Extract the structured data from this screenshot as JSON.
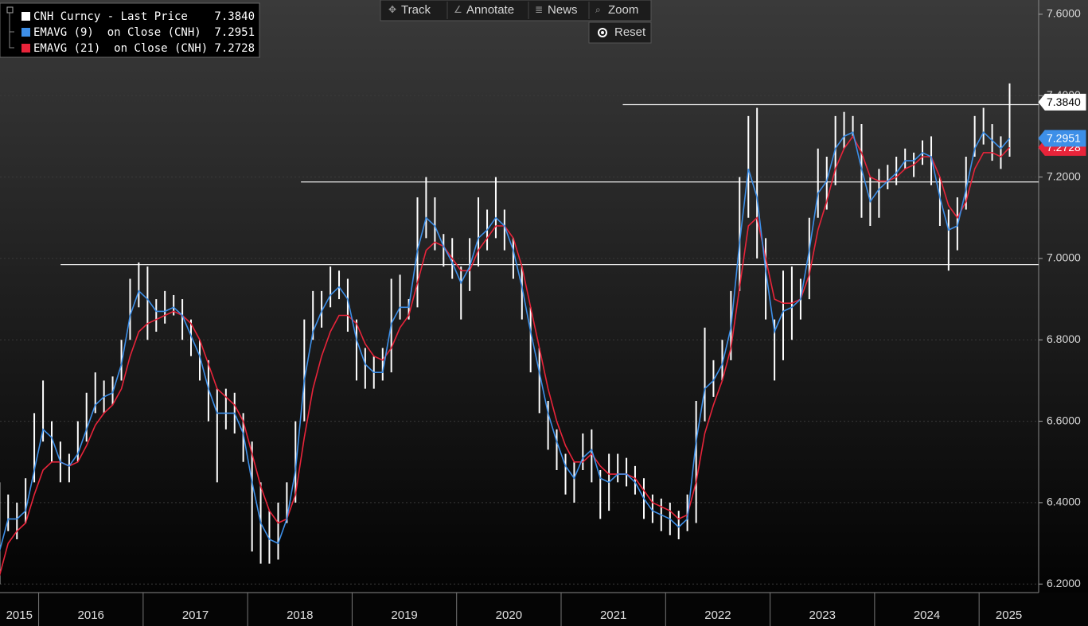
{
  "chart_data": {
    "type": "ohlc",
    "x": [
      2015.625,
      2015.708,
      2015.792,
      2015.875,
      2015.958,
      2016.042,
      2016.125,
      2016.208,
      2016.292,
      2016.375,
      2016.458,
      2016.542,
      2016.625,
      2016.708,
      2016.792,
      2016.875,
      2016.958,
      2017.042,
      2017.125,
      2017.208,
      2017.292,
      2017.375,
      2017.458,
      2017.542,
      2017.625,
      2017.708,
      2017.792,
      2017.875,
      2017.958,
      2018.042,
      2018.125,
      2018.208,
      2018.292,
      2018.375,
      2018.458,
      2018.542,
      2018.625,
      2018.708,
      2018.792,
      2018.875,
      2018.958,
      2019.042,
      2019.125,
      2019.208,
      2019.292,
      2019.375,
      2019.458,
      2019.542,
      2019.625,
      2019.708,
      2019.792,
      2019.875,
      2019.958,
      2020.042,
      2020.125,
      2020.208,
      2020.292,
      2020.375,
      2020.458,
      2020.542,
      2020.625,
      2020.708,
      2020.792,
      2020.875,
      2020.958,
      2021.042,
      2021.125,
      2021.208,
      2021.292,
      2021.375,
      2021.458,
      2021.542,
      2021.625,
      2021.708,
      2021.792,
      2021.875,
      2021.958,
      2022.042,
      2022.125,
      2022.208,
      2022.292,
      2022.375,
      2022.458,
      2022.542,
      2022.625,
      2022.708,
      2022.792,
      2022.875,
      2022.958,
      2023.042,
      2023.125,
      2023.208,
      2023.292,
      2023.375,
      2023.458,
      2023.542,
      2023.625,
      2023.708,
      2023.792,
      2023.875,
      2023.958,
      2024.042,
      2024.125,
      2024.208,
      2024.292,
      2024.375,
      2024.458,
      2024.542,
      2024.625,
      2024.708,
      2024.792,
      2024.875,
      2024.958,
      2025.042,
      2025.125,
      2025.208,
      2025.292
    ],
    "series": [
      {
        "name": "CNH Curncy - Last Price",
        "color": "#ffffff",
        "last": 7.384,
        "last_label": "7.3840",
        "high": [
          6.45,
          6.42,
          6.4,
          6.46,
          6.62,
          6.7,
          6.6,
          6.55,
          6.52,
          6.6,
          6.67,
          6.72,
          6.7,
          6.71,
          6.8,
          6.95,
          6.99,
          6.98,
          6.9,
          6.92,
          6.91,
          6.9,
          6.85,
          6.8,
          6.75,
          6.68,
          6.68,
          6.67,
          6.62,
          6.55,
          6.45,
          6.38,
          6.4,
          6.45,
          6.6,
          6.85,
          6.92,
          6.92,
          6.98,
          6.97,
          6.95,
          6.85,
          6.78,
          6.76,
          6.78,
          6.95,
          6.96,
          6.9,
          7.15,
          7.2,
          7.15,
          7.06,
          7.05,
          6.98,
          7.05,
          7.15,
          7.12,
          7.2,
          7.12,
          7.05,
          6.98,
          6.88,
          6.78,
          6.65,
          6.58,
          6.52,
          6.5,
          6.57,
          6.58,
          6.48,
          6.52,
          6.52,
          6.51,
          6.49,
          6.46,
          6.42,
          6.41,
          6.4,
          6.38,
          6.42,
          6.65,
          6.83,
          6.75,
          6.8,
          6.92,
          7.2,
          7.35,
          7.37,
          7.05,
          6.85,
          6.97,
          6.98,
          6.95,
          7.1,
          7.27,
          7.25,
          7.35,
          7.36,
          7.35,
          7.33,
          7.2,
          7.22,
          7.23,
          7.25,
          7.27,
          7.26,
          7.29,
          7.3,
          7.2,
          7.12,
          7.15,
          7.25,
          7.35,
          7.37,
          7.33,
          7.3,
          7.43
        ],
        "low": [
          6.2,
          6.33,
          6.31,
          6.35,
          6.45,
          6.55,
          6.5,
          6.45,
          6.45,
          6.5,
          6.55,
          6.62,
          6.62,
          6.64,
          6.7,
          6.8,
          6.88,
          6.8,
          6.82,
          6.84,
          6.86,
          6.8,
          6.76,
          6.7,
          6.6,
          6.45,
          6.58,
          6.57,
          6.5,
          6.28,
          6.25,
          6.25,
          6.26,
          6.35,
          6.4,
          6.6,
          6.8,
          6.83,
          6.88,
          6.9,
          6.82,
          6.7,
          6.68,
          6.68,
          6.7,
          6.72,
          6.85,
          6.85,
          6.88,
          7.05,
          7.02,
          6.98,
          6.95,
          6.85,
          6.92,
          6.98,
          7.02,
          7.05,
          7.02,
          6.95,
          6.85,
          6.72,
          6.62,
          6.53,
          6.48,
          6.42,
          6.4,
          6.48,
          6.45,
          6.36,
          6.38,
          6.45,
          6.44,
          6.42,
          6.36,
          6.35,
          6.33,
          6.32,
          6.31,
          6.33,
          6.35,
          6.6,
          6.66,
          6.7,
          6.75,
          6.92,
          7.1,
          7.0,
          6.85,
          6.7,
          6.75,
          6.8,
          6.85,
          6.9,
          7.1,
          7.12,
          7.18,
          7.27,
          7.3,
          7.1,
          7.08,
          7.1,
          7.17,
          7.18,
          7.22,
          7.2,
          7.23,
          7.18,
          7.08,
          6.97,
          7.02,
          7.12,
          7.25,
          7.28,
          7.24,
          7.22,
          7.25
        ]
      },
      {
        "name": "EMAVG (9)  on Close (CNH)",
        "color": "#3d8fe8",
        "last": 7.2951,
        "last_label": "7.2951",
        "values": [
          6.28,
          6.36,
          6.36,
          6.38,
          6.48,
          6.58,
          6.56,
          6.5,
          6.49,
          6.52,
          6.58,
          6.64,
          6.66,
          6.67,
          6.74,
          6.86,
          6.92,
          6.9,
          6.87,
          6.87,
          6.88,
          6.86,
          6.81,
          6.76,
          6.68,
          6.62,
          6.62,
          6.62,
          6.57,
          6.45,
          6.35,
          6.31,
          6.3,
          6.36,
          6.48,
          6.7,
          6.82,
          6.87,
          6.91,
          6.93,
          6.9,
          6.8,
          6.74,
          6.72,
          6.72,
          6.84,
          6.88,
          6.88,
          7.02,
          7.1,
          7.08,
          7.03,
          6.99,
          6.94,
          6.98,
          7.05,
          7.07,
          7.1,
          7.08,
          7.02,
          6.93,
          6.82,
          6.72,
          6.62,
          6.55,
          6.49,
          6.46,
          6.51,
          6.53,
          6.46,
          6.45,
          6.47,
          6.47,
          6.45,
          6.41,
          6.38,
          6.37,
          6.36,
          6.34,
          6.36,
          6.55,
          6.68,
          6.7,
          6.74,
          6.83,
          7.04,
          7.22,
          7.15,
          6.97,
          6.82,
          6.87,
          6.88,
          6.9,
          7.02,
          7.16,
          7.19,
          7.27,
          7.3,
          7.31,
          7.22,
          7.14,
          7.17,
          7.19,
          7.21,
          7.24,
          7.24,
          7.26,
          7.25,
          7.15,
          7.07,
          7.08,
          7.17,
          7.27,
          7.31,
          7.29,
          7.27,
          7.2951
        ]
      },
      {
        "name": "EMAVG (21)  on Close (CNH)",
        "color": "#e8243a",
        "last": 7.2728,
        "last_label": "7.2728",
        "values": [
          6.22,
          6.3,
          6.33,
          6.35,
          6.42,
          6.48,
          6.5,
          6.5,
          6.49,
          6.5,
          6.54,
          6.59,
          6.62,
          6.64,
          6.68,
          6.76,
          6.82,
          6.84,
          6.85,
          6.86,
          6.87,
          6.86,
          6.84,
          6.8,
          6.74,
          6.68,
          6.66,
          6.64,
          6.6,
          6.52,
          6.44,
          6.38,
          6.35,
          6.36,
          6.42,
          6.56,
          6.68,
          6.76,
          6.82,
          6.86,
          6.86,
          6.84,
          6.79,
          6.76,
          6.75,
          6.78,
          6.83,
          6.86,
          6.94,
          7.02,
          7.04,
          7.03,
          7.0,
          6.97,
          6.97,
          7.02,
          7.05,
          7.08,
          7.08,
          7.05,
          6.98,
          6.88,
          6.78,
          6.68,
          6.6,
          6.54,
          6.5,
          6.5,
          6.52,
          6.49,
          6.47,
          6.47,
          6.47,
          6.46,
          6.43,
          6.4,
          6.39,
          6.38,
          6.36,
          6.37,
          6.45,
          6.57,
          6.64,
          6.7,
          6.78,
          6.93,
          7.08,
          7.1,
          7.0,
          6.9,
          6.89,
          6.89,
          6.9,
          6.96,
          7.07,
          7.14,
          7.22,
          7.27,
          7.3,
          7.26,
          7.2,
          7.19,
          7.19,
          7.2,
          7.22,
          7.23,
          7.25,
          7.25,
          7.2,
          7.13,
          7.1,
          7.14,
          7.22,
          7.26,
          7.26,
          7.25,
          7.2728
        ]
      }
    ],
    "levels": [
      {
        "value": 7.378,
        "x_start": 2021.59
      },
      {
        "value": 7.188,
        "x_start": 2018.51
      },
      {
        "value": 6.985,
        "x_start": 2016.21
      }
    ],
    "xlim": [
      2015.63,
      2025.57
    ],
    "xticks": [
      2016,
      2017,
      2018,
      2019,
      2020,
      2021,
      2022,
      2023,
      2024,
      2025
    ],
    "x_labels": [
      "2015",
      "2016",
      "2017",
      "2018",
      "2019",
      "2020",
      "2021",
      "2022",
      "2023",
      "2024",
      "2025"
    ],
    "ylim": [
      6.179,
      7.635
    ],
    "yticks": [
      {
        "value": 6.2,
        "label": "6.2000"
      },
      {
        "value": 6.4,
        "label": "6.4000"
      },
      {
        "value": 6.6,
        "label": "6.6000"
      },
      {
        "value": 6.8,
        "label": "6.8000"
      },
      {
        "value": 7.0,
        "label": "7.0000"
      },
      {
        "value": 7.2,
        "label": "7.2000"
      },
      {
        "value": 7.4,
        "label": "7.4000"
      },
      {
        "value": 7.6,
        "label": "7.6000"
      }
    ],
    "grid": true
  },
  "toolbar": {
    "buttons": [
      "Track",
      "Annotate",
      "News",
      "Zoom"
    ],
    "reset": "Reset"
  }
}
